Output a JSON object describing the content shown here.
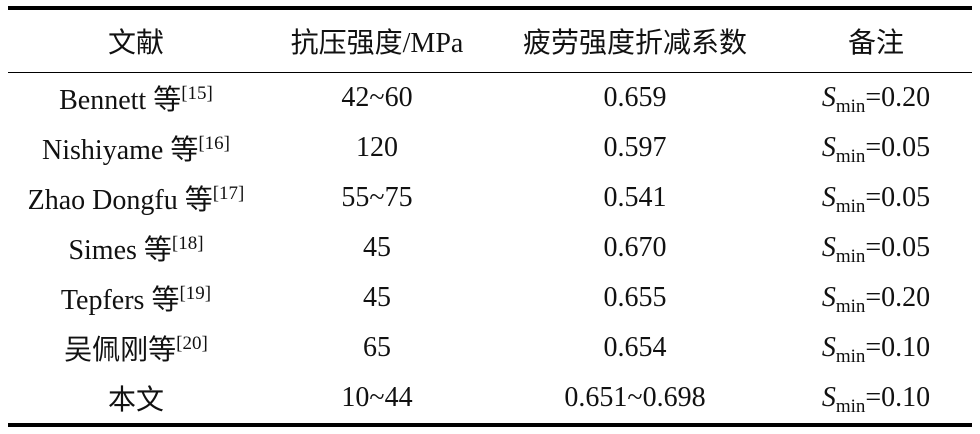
{
  "table": {
    "header": [
      "文献",
      "抗压强度/MPa",
      "疲劳强度折减系数",
      "备注"
    ],
    "rows": [
      [
        {
          "name": "Bennett 等",
          "ref": "[15]"
        },
        "42~60",
        "0.659",
        {
          "symbol": "S",
          "subscript": "min",
          "value": "=0.20"
        }
      ],
      [
        {
          "name": "Nishiyame 等",
          "ref": "[16]"
        },
        "120",
        "0.597",
        {
          "symbol": "S",
          "subscript": "min",
          "value": "=0.05"
        }
      ],
      [
        {
          "name": "Zhao Dongfu 等",
          "ref": "[17]"
        },
        "55~75",
        "0.541",
        {
          "symbol": "S",
          "subscript": "min",
          "value": "=0.05"
        }
      ],
      [
        {
          "name": "Simes 等",
          "ref": "[18]"
        },
        "45",
        "0.670",
        {
          "symbol": "S",
          "subscript": "min",
          "value": "=0.05"
        }
      ],
      [
        {
          "name": "Tepfers 等",
          "ref": "[19]"
        },
        "45",
        "0.655",
        {
          "symbol": "S",
          "subscript": "min",
          "value": "=0.20"
        }
      ],
      [
        {
          "name": "吴佩刚等",
          "ref": "[20]"
        },
        "65",
        "0.654",
        {
          "symbol": "S",
          "subscript": "min",
          "value": "=0.10"
        }
      ],
      [
        "本文",
        "10~44",
        "0.651~0.698",
        {
          "symbol": "S",
          "subscript": "min",
          "value": "=0.10"
        }
      ]
    ]
  }
}
